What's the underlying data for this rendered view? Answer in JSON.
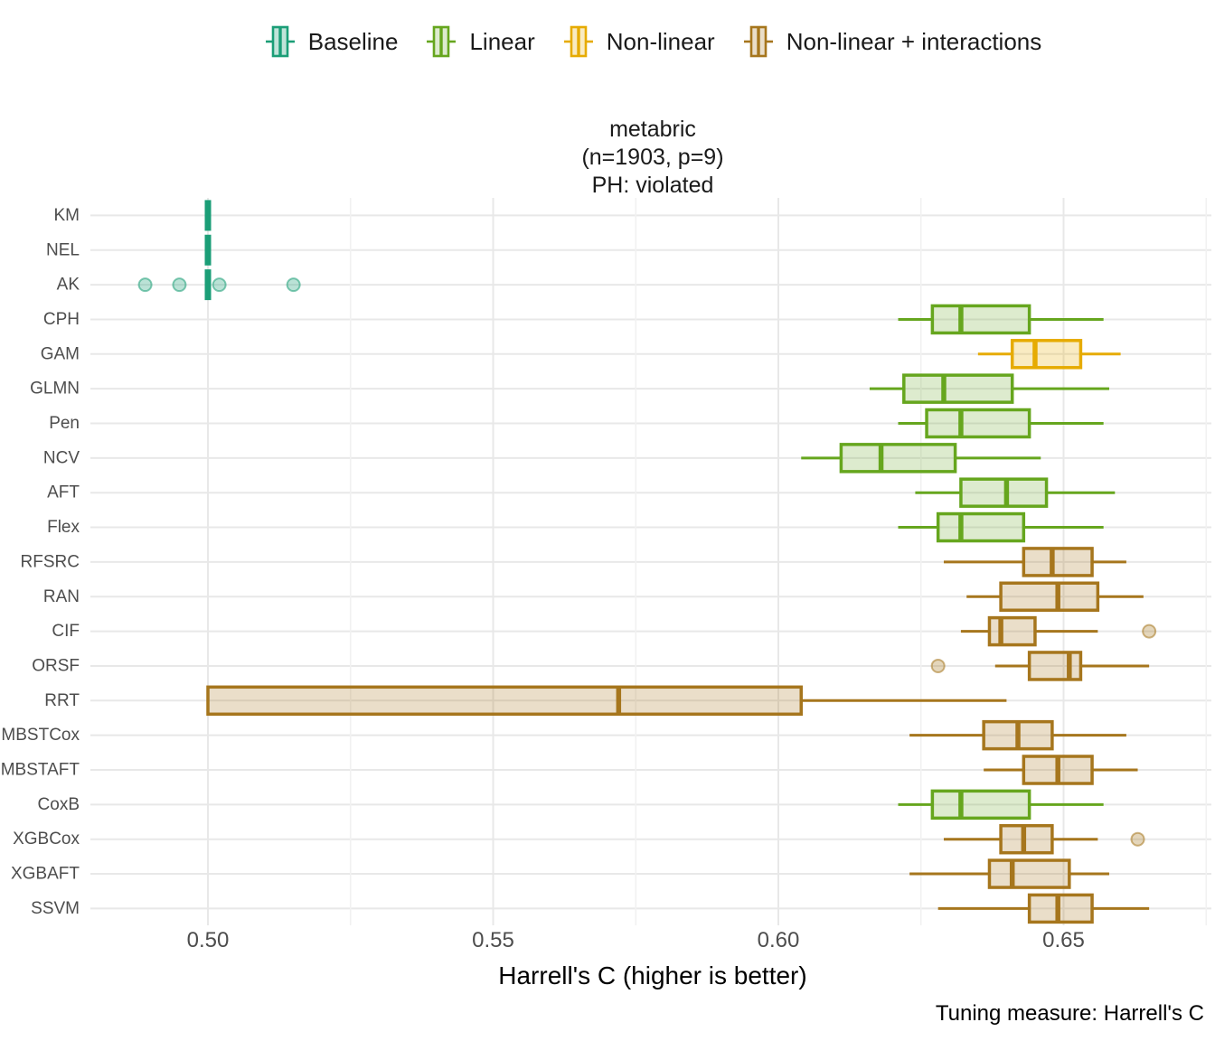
{
  "title": {
    "line1": "metabric",
    "line2": "(n=1903, p=9)",
    "line3": "PH: violated"
  },
  "caption": {
    "text": "Tuning measure: Harrell's C"
  },
  "legend_order": [
    "baseline",
    "linear",
    "nonlinear",
    "nonlinear_interactions"
  ],
  "chart_data": {
    "type": "boxplot",
    "orientation": "horizontal",
    "title": "metabric (n=1903, p=9) PH: violated",
    "xlabel": "Harrell's C (higher is better)",
    "ylabel": "",
    "grid": true,
    "legend_position": "top",
    "x_ticks": [
      {
        "value": 0.5,
        "label": "0.50"
      },
      {
        "value": 0.55,
        "label": "0.55"
      },
      {
        "value": 0.6,
        "label": "0.60"
      },
      {
        "value": 0.65,
        "label": "0.65"
      }
    ],
    "x_minor_ticks": [
      0.525,
      0.575,
      0.625,
      0.675
    ],
    "x_domain": [
      0.479,
      0.677
    ],
    "groups": {
      "baseline": {
        "label": "Baseline",
        "stroke": "#1b9e77",
        "fill": "rgba(27,158,119,0.28)",
        "outlier_fill": "rgba(27,158,119,0.30)",
        "outlier_stroke": "rgba(27,158,119,0.55)"
      },
      "linear": {
        "label": "Linear",
        "stroke": "#66a61e",
        "fill": "rgba(102,166,30,0.22)",
        "outlier_fill": "rgba(102,166,30,0.30)",
        "outlier_stroke": "rgba(102,166,30,0.55)"
      },
      "nonlinear": {
        "label": "Non-linear",
        "stroke": "#e6ab02",
        "fill": "rgba(230,171,2,0.24)",
        "outlier_fill": "rgba(230,171,2,0.30)",
        "outlier_stroke": "rgba(230,171,2,0.55)"
      },
      "nonlinear_interactions": {
        "label": "Non-linear + interactions",
        "stroke": "#a6761d",
        "fill": "rgba(166,118,29,0.24)",
        "outlier_fill": "rgba(166,118,29,0.30)",
        "outlier_stroke": "rgba(166,118,29,0.55)"
      }
    },
    "stats_format": [
      "min",
      "q1",
      "median",
      "q3",
      "max"
    ],
    "models": [
      {
        "label": "KM",
        "group": "baseline",
        "stats": [
          0.5,
          0.5,
          0.5,
          0.5,
          0.5
        ],
        "outliers": []
      },
      {
        "label": "NEL",
        "group": "baseline",
        "stats": [
          0.5,
          0.5,
          0.5,
          0.5,
          0.5
        ],
        "outliers": []
      },
      {
        "label": "AK",
        "group": "baseline",
        "stats": [
          0.5,
          0.5,
          0.5,
          0.5,
          0.5
        ],
        "outliers": [
          0.489,
          0.495,
          0.502,
          0.515
        ]
      },
      {
        "label": "CPH",
        "group": "linear",
        "stats": [
          0.621,
          0.627,
          0.632,
          0.644,
          0.657
        ],
        "outliers": []
      },
      {
        "label": "GAM",
        "group": "nonlinear",
        "stats": [
          0.635,
          0.641,
          0.645,
          0.653,
          0.66
        ],
        "outliers": []
      },
      {
        "label": "GLMN",
        "group": "linear",
        "stats": [
          0.616,
          0.622,
          0.629,
          0.641,
          0.658
        ],
        "outliers": []
      },
      {
        "label": "Pen",
        "group": "linear",
        "stats": [
          0.621,
          0.626,
          0.632,
          0.644,
          0.657
        ],
        "outliers": []
      },
      {
        "label": "NCV",
        "group": "linear",
        "stats": [
          0.604,
          0.611,
          0.618,
          0.631,
          0.646
        ],
        "outliers": []
      },
      {
        "label": "AFT",
        "group": "linear",
        "stats": [
          0.624,
          0.632,
          0.64,
          0.647,
          0.659
        ],
        "outliers": []
      },
      {
        "label": "Flex",
        "group": "linear",
        "stats": [
          0.621,
          0.628,
          0.632,
          0.643,
          0.657
        ],
        "outliers": []
      },
      {
        "label": "RFSRC",
        "group": "nonlinear_interactions",
        "stats": [
          0.629,
          0.643,
          0.648,
          0.655,
          0.661
        ],
        "outliers": []
      },
      {
        "label": "RAN",
        "group": "nonlinear_interactions",
        "stats": [
          0.633,
          0.639,
          0.649,
          0.656,
          0.664
        ],
        "outliers": []
      },
      {
        "label": "CIF",
        "group": "nonlinear_interactions",
        "stats": [
          0.632,
          0.637,
          0.639,
          0.645,
          0.656
        ],
        "outliers": [
          0.665
        ]
      },
      {
        "label": "ORSF",
        "group": "nonlinear_interactions",
        "stats": [
          0.638,
          0.644,
          0.651,
          0.653,
          0.665
        ],
        "outliers": [
          0.628
        ]
      },
      {
        "label": "RRT",
        "group": "nonlinear_interactions",
        "stats": [
          0.5,
          0.5,
          0.572,
          0.604,
          0.64
        ],
        "outliers": []
      },
      {
        "label": "MBSTCox",
        "group": "nonlinear_interactions",
        "stats": [
          0.623,
          0.636,
          0.642,
          0.648,
          0.661
        ],
        "outliers": []
      },
      {
        "label": "MBSTAFT",
        "group": "nonlinear_interactions",
        "stats": [
          0.636,
          0.643,
          0.649,
          0.655,
          0.663
        ],
        "outliers": []
      },
      {
        "label": "CoxB",
        "group": "linear",
        "stats": [
          0.621,
          0.627,
          0.632,
          0.644,
          0.657
        ],
        "outliers": []
      },
      {
        "label": "XGBCox",
        "group": "nonlinear_interactions",
        "stats": [
          0.629,
          0.639,
          0.643,
          0.648,
          0.656
        ],
        "outliers": [
          0.663
        ]
      },
      {
        "label": "XGBAFT",
        "group": "nonlinear_interactions",
        "stats": [
          0.623,
          0.637,
          0.641,
          0.651,
          0.658
        ],
        "outliers": []
      },
      {
        "label": "SSVM",
        "group": "nonlinear_interactions",
        "stats": [
          0.628,
          0.644,
          0.649,
          0.655,
          0.665
        ],
        "outliers": []
      }
    ]
  }
}
